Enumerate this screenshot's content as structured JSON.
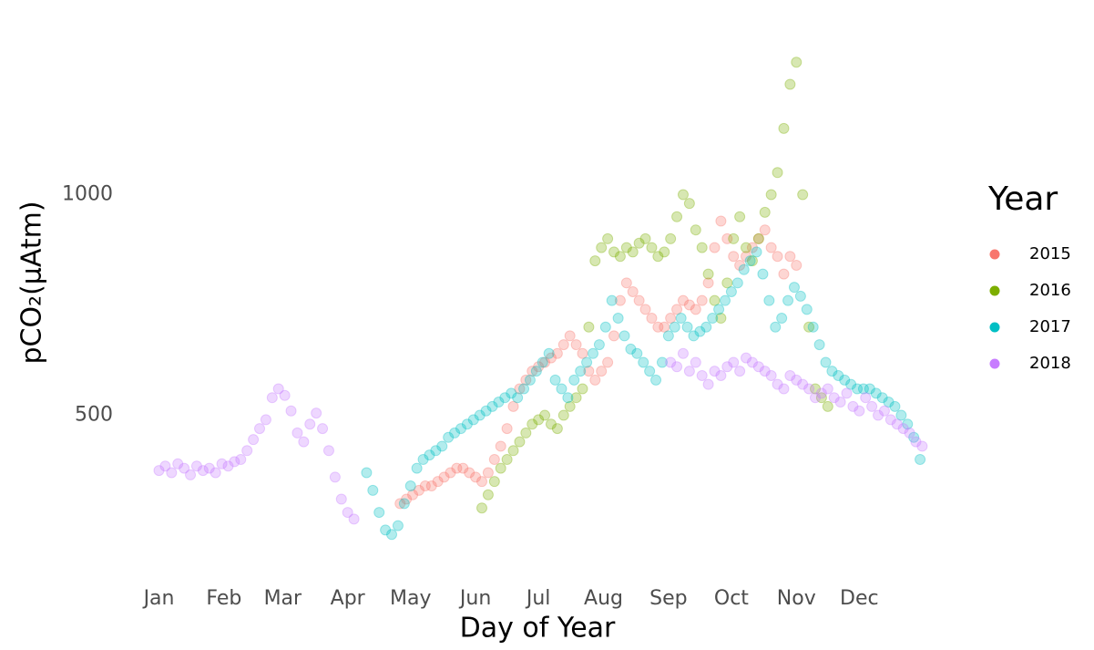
{
  "chart_data": {
    "type": "scatter",
    "x_label": "Day of Year",
    "y_label": "pCO₂(µAtm)",
    "legend_title": "Year",
    "legend_position": "right",
    "grid": false,
    "xlim": [
      -14,
      377
    ],
    "ylim": [
      150,
      1410
    ],
    "xticks": [
      {
        "value": 1,
        "label": "Jan"
      },
      {
        "value": 32,
        "label": "Feb"
      },
      {
        "value": 60,
        "label": "Mar"
      },
      {
        "value": 91,
        "label": "Apr"
      },
      {
        "value": 121,
        "label": "May"
      },
      {
        "value": 152,
        "label": "Jun"
      },
      {
        "value": 182,
        "label": "Jul"
      },
      {
        "value": 213,
        "label": "Aug"
      },
      {
        "value": 244,
        "label": "Sep"
      },
      {
        "value": 274,
        "label": "Oct"
      },
      {
        "value": 305,
        "label": "Nov"
      },
      {
        "value": 335,
        "label": "Dec"
      }
    ],
    "yticks": [
      500,
      1000
    ],
    "series": [
      {
        "name": "2015",
        "color": "#F8766D",
        "x": [
          116,
          119,
          122,
          125,
          128,
          131,
          134,
          137,
          140,
          143,
          146,
          149,
          152,
          155,
          158,
          161,
          164,
          167,
          170,
          173,
          176,
          179,
          182,
          185,
          188,
          191,
          194,
          197,
          200,
          203,
          206,
          209,
          212,
          215,
          218,
          221,
          224,
          227,
          230,
          233,
          236,
          239,
          242,
          245,
          248,
          251,
          254,
          257,
          260,
          263,
          266,
          269,
          272,
          275,
          278,
          281,
          284,
          287,
          290,
          293,
          296,
          299,
          302,
          305
        ],
        "values": [
          300,
          310,
          320,
          330,
          340,
          340,
          350,
          360,
          370,
          380,
          380,
          370,
          360,
          350,
          370,
          400,
          430,
          470,
          520,
          560,
          580,
          600,
          610,
          620,
          630,
          640,
          660,
          680,
          660,
          640,
          600,
          580,
          600,
          620,
          680,
          760,
          800,
          780,
          760,
          740,
          720,
          700,
          700,
          720,
          740,
          760,
          750,
          740,
          760,
          800,
          880,
          940,
          900,
          860,
          840,
          860,
          880,
          900,
          920,
          880,
          860,
          820,
          860,
          840
        ]
      },
      {
        "name": "2016",
        "color": "#7CAE00",
        "x": [
          155,
          158,
          161,
          164,
          167,
          170,
          173,
          176,
          179,
          182,
          185,
          188,
          191,
          194,
          197,
          200,
          203,
          206,
          209,
          212,
          215,
          218,
          221,
          224,
          227,
          230,
          233,
          236,
          239,
          242,
          245,
          248,
          251,
          254,
          257,
          260,
          263,
          266,
          269,
          272,
          275,
          278,
          281,
          284,
          287,
          290,
          293,
          296,
          299,
          302,
          305,
          308,
          311,
          314,
          317,
          320
        ],
        "values": [
          290,
          320,
          350,
          380,
          400,
          420,
          440,
          460,
          480,
          490,
          500,
          480,
          470,
          500,
          520,
          540,
          560,
          700,
          850,
          880,
          900,
          870,
          860,
          880,
          870,
          890,
          900,
          880,
          860,
          870,
          900,
          950,
          1000,
          980,
          920,
          880,
          820,
          760,
          720,
          800,
          900,
          950,
          880,
          850,
          900,
          960,
          1000,
          1050,
          1150,
          1250,
          1300,
          1000,
          700,
          560,
          540,
          520
        ]
      },
      {
        "name": "2017",
        "color": "#00BFC4",
        "x": [
          100,
          103,
          106,
          109,
          112,
          115,
          118,
          121,
          124,
          127,
          130,
          133,
          136,
          139,
          142,
          145,
          148,
          151,
          154,
          157,
          160,
          163,
          166,
          169,
          172,
          175,
          178,
          181,
          184,
          187,
          190,
          193,
          196,
          199,
          202,
          205,
          208,
          211,
          214,
          217,
          220,
          223,
          226,
          229,
          232,
          235,
          238,
          241,
          244,
          247,
          250,
          253,
          256,
          259,
          262,
          265,
          268,
          271,
          274,
          277,
          280,
          283,
          286,
          289,
          292,
          295,
          298,
          301,
          304,
          307,
          310,
          313,
          316,
          319,
          322,
          325,
          328,
          331,
          334,
          337,
          340,
          343,
          346,
          349,
          352,
          355,
          358,
          361,
          364
        ],
        "values": [
          370,
          330,
          280,
          240,
          230,
          250,
          300,
          340,
          380,
          400,
          410,
          420,
          430,
          450,
          460,
          470,
          480,
          490,
          500,
          510,
          520,
          530,
          540,
          550,
          540,
          560,
          580,
          600,
          620,
          640,
          580,
          560,
          540,
          580,
          600,
          620,
          640,
          660,
          700,
          760,
          720,
          680,
          650,
          640,
          620,
          600,
          580,
          620,
          680,
          700,
          720,
          700,
          680,
          690,
          700,
          720,
          740,
          760,
          780,
          800,
          830,
          850,
          870,
          820,
          760,
          700,
          720,
          760,
          790,
          770,
          740,
          700,
          660,
          620,
          600,
          590,
          580,
          570,
          560,
          560,
          560,
          550,
          540,
          530,
          520,
          500,
          480,
          450,
          400
        ]
      },
      {
        "name": "2018",
        "color": "#C77CFF",
        "x": [
          1,
          4,
          7,
          10,
          13,
          16,
          19,
          22,
          25,
          28,
          31,
          34,
          37,
          40,
          43,
          46,
          49,
          52,
          55,
          58,
          61,
          64,
          67,
          70,
          73,
          76,
          79,
          82,
          85,
          88,
          91,
          94,
          245,
          248,
          251,
          254,
          257,
          260,
          263,
          266,
          269,
          272,
          275,
          278,
          281,
          284,
          287,
          290,
          293,
          296,
          299,
          302,
          305,
          308,
          311,
          314,
          317,
          320,
          323,
          326,
          329,
          332,
          335,
          338,
          341,
          344,
          347,
          350,
          353,
          356,
          359,
          362,
          365
        ],
        "values": [
          375,
          385,
          370,
          390,
          380,
          365,
          385,
          375,
          380,
          370,
          390,
          385,
          395,
          400,
          420,
          445,
          470,
          490,
          540,
          560,
          545,
          510,
          460,
          440,
          480,
          505,
          470,
          420,
          360,
          310,
          280,
          265,
          620,
          610,
          640,
          600,
          620,
          590,
          570,
          600,
          590,
          610,
          620,
          600,
          630,
          620,
          610,
          600,
          590,
          570,
          560,
          590,
          580,
          570,
          560,
          540,
          550,
          560,
          540,
          530,
          550,
          520,
          510,
          540,
          520,
          500,
          510,
          490,
          480,
          470,
          460,
          440,
          430
        ]
      }
    ]
  }
}
